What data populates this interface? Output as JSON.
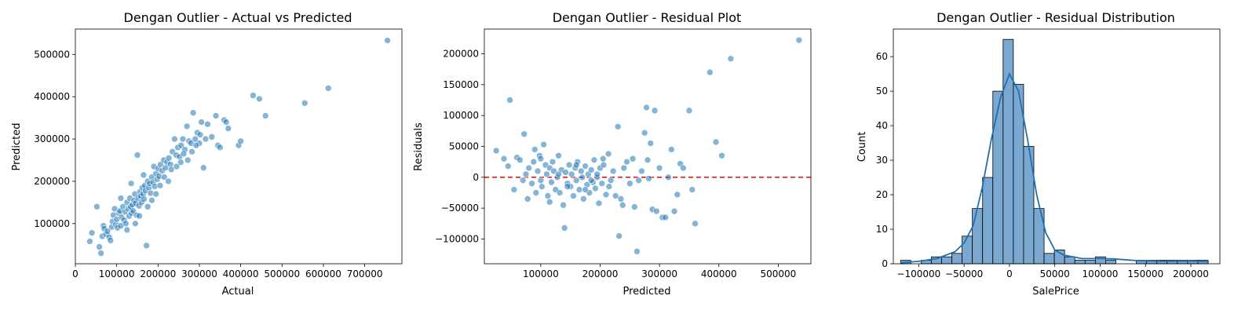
{
  "chart_data": [
    {
      "type": "scatter",
      "title": "Dengan Outlier - Actual vs Predicted",
      "xlabel": "Actual",
      "ylabel": "Predicted",
      "xlim": [
        0,
        790000
      ],
      "ylim": [
        5000,
        560000
      ],
      "xticks": [
        0,
        100000,
        200000,
        300000,
        400000,
        500000,
        600000,
        700000
      ],
      "yticks": [
        100000,
        200000,
        300000,
        400000,
        500000
      ],
      "color": "#1f77b4",
      "points": [
        [
          35000,
          58000
        ],
        [
          40000,
          78000
        ],
        [
          52000,
          140000
        ],
        [
          58000,
          45000
        ],
        [
          62000,
          30000
        ],
        [
          65000,
          70000
        ],
        [
          68000,
          95000
        ],
        [
          70000,
          88000
        ],
        [
          74000,
          75000
        ],
        [
          78000,
          82000
        ],
        [
          82000,
          68000
        ],
        [
          85000,
          60000
        ],
        [
          88000,
          92000
        ],
        [
          90000,
          105000
        ],
        [
          92000,
          120000
        ],
        [
          95000,
          135000
        ],
        [
          98000,
          98000
        ],
        [
          100000,
          110000
        ],
        [
          102000,
          90000
        ],
        [
          105000,
          125000
        ],
        [
          108000,
          130000
        ],
        [
          110000,
          95000
        ],
        [
          112000,
          115000
        ],
        [
          115000,
          140000
        ],
        [
          118000,
          108000
        ],
        [
          120000,
          128000
        ],
        [
          122000,
          100000
        ],
        [
          125000,
          150000
        ],
        [
          128000,
          135000
        ],
        [
          130000,
          118000
        ],
        [
          132000,
          160000
        ],
        [
          134000,
          140000
        ],
        [
          136000,
          125000
        ],
        [
          138000,
          145000
        ],
        [
          140000,
          130000
        ],
        [
          142000,
          155000
        ],
        [
          144000,
          170000
        ],
        [
          146000,
          148000
        ],
        [
          148000,
          120000
        ],
        [
          150000,
          262000
        ],
        [
          152000,
          160000
        ],
        [
          154000,
          142000
        ],
        [
          156000,
          175000
        ],
        [
          158000,
          165000
        ],
        [
          160000,
          150000
        ],
        [
          162000,
          185000
        ],
        [
          164000,
          170000
        ],
        [
          166000,
          158000
        ],
        [
          168000,
          190000
        ],
        [
          170000,
          178000
        ],
        [
          172000,
          48000
        ],
        [
          175000,
          200000
        ],
        [
          178000,
          185000
        ],
        [
          180000,
          195000
        ],
        [
          182000,
          172000
        ],
        [
          185000,
          210000
        ],
        [
          188000,
          198000
        ],
        [
          190000,
          235000
        ],
        [
          192000,
          188000
        ],
        [
          195000,
          218000
        ],
        [
          198000,
          205000
        ],
        [
          200000,
          230000
        ],
        [
          203000,
          212000
        ],
        [
          206000,
          240000
        ],
        [
          210000,
          225000
        ],
        [
          214000,
          250000
        ],
        [
          218000,
          232000
        ],
        [
          222000,
          245000
        ],
        [
          226000,
          255000
        ],
        [
          230000,
          240000
        ],
        [
          235000,
          270000
        ],
        [
          240000,
          300000
        ],
        [
          244000,
          262000
        ],
        [
          248000,
          280000
        ],
        [
          252000,
          258000
        ],
        [
          256000,
          285000
        ],
        [
          260000,
          300000
        ],
        [
          265000,
          275000
        ],
        [
          270000,
          330000
        ],
        [
          275000,
          295000
        ],
        [
          280000,
          290000
        ],
        [
          285000,
          362000
        ],
        [
          290000,
          300000
        ],
        [
          295000,
          315000
        ],
        [
          300000,
          290000
        ],
        [
          305000,
          340000
        ],
        [
          310000,
          232000
        ],
        [
          315000,
          300000
        ],
        [
          320000,
          335000
        ],
        [
          330000,
          305000
        ],
        [
          340000,
          355000
        ],
        [
          345000,
          285000
        ],
        [
          350000,
          280000
        ],
        [
          360000,
          345000
        ],
        [
          365000,
          340000
        ],
        [
          370000,
          325000
        ],
        [
          395000,
          285000
        ],
        [
          400000,
          295000
        ],
        [
          430000,
          403000
        ],
        [
          445000,
          395000
        ],
        [
          460000,
          355000
        ],
        [
          555000,
          385000
        ],
        [
          612000,
          420000
        ],
        [
          755000,
          533000
        ],
        [
          110000,
          160000
        ],
        [
          125000,
          85000
        ],
        [
          135000,
          195000
        ],
        [
          145000,
          100000
        ],
        [
          155000,
          118000
        ],
        [
          165000,
          215000
        ],
        [
          175000,
          140000
        ],
        [
          185000,
          155000
        ],
        [
          195000,
          170000
        ],
        [
          205000,
          190000
        ],
        [
          215000,
          210000
        ],
        [
          225000,
          200000
        ],
        [
          232000,
          228000
        ],
        [
          245000,
          235000
        ],
        [
          255000,
          245000
        ],
        [
          262000,
          265000
        ],
        [
          272000,
          250000
        ],
        [
          282000,
          270000
        ],
        [
          292000,
          285000
        ],
        [
          302000,
          310000
        ]
      ]
    },
    {
      "type": "scatter",
      "title": "Dengan Outlier - Residual Plot",
      "xlabel": "Predicted",
      "ylabel": "Residuals",
      "xlim": [
        5000,
        555000
      ],
      "ylim": [
        -140000,
        240000
      ],
      "xticks": [
        100000,
        200000,
        300000,
        400000,
        500000
      ],
      "yticks": [
        -100000,
        -50000,
        0,
        50000,
        100000,
        150000,
        200000
      ],
      "reference_line_y": 0,
      "reference_line_color": "#e41a1c",
      "color": "#1f77b4",
      "points": [
        [
          25000,
          43000
        ],
        [
          38000,
          30000
        ],
        [
          45000,
          18000
        ],
        [
          48000,
          125000
        ],
        [
          55000,
          -20000
        ],
        [
          60000,
          32000
        ],
        [
          65000,
          28000
        ],
        [
          70000,
          -5000
        ],
        [
          72000,
          70000
        ],
        [
          75000,
          5000
        ],
        [
          78000,
          -35000
        ],
        [
          80000,
          15000
        ],
        [
          85000,
          -10000
        ],
        [
          88000,
          25000
        ],
        [
          90000,
          45000
        ],
        [
          92000,
          -25000
        ],
        [
          95000,
          10000
        ],
        [
          98000,
          35000
        ],
        [
          100000,
          30000
        ],
        [
          102000,
          -15000
        ],
        [
          105000,
          53000
        ],
        [
          108000,
          20000
        ],
        [
          110000,
          5000
        ],
        [
          112000,
          -30000
        ],
        [
          115000,
          15000
        ],
        [
          118000,
          -8000
        ],
        [
          120000,
          25000
        ],
        [
          122000,
          10000
        ],
        [
          125000,
          -20000
        ],
        [
          128000,
          0
        ],
        [
          130000,
          35000
        ],
        [
          132000,
          -25000
        ],
        [
          135000,
          12000
        ],
        [
          138000,
          -45000
        ],
        [
          140000,
          -82000
        ],
        [
          142000,
          8000
        ],
        [
          145000,
          -10000
        ],
        [
          148000,
          20000
        ],
        [
          150000,
          -15000
        ],
        [
          152000,
          5000
        ],
        [
          155000,
          -30000
        ],
        [
          158000,
          15000
        ],
        [
          160000,
          -5000
        ],
        [
          162000,
          25000
        ],
        [
          165000,
          -20000
        ],
        [
          168000,
          10000
        ],
        [
          170000,
          0
        ],
        [
          172000,
          -35000
        ],
        [
          175000,
          18000
        ],
        [
          178000,
          -12000
        ],
        [
          180000,
          5000
        ],
        [
          182000,
          -25000
        ],
        [
          185000,
          12000
        ],
        [
          188000,
          -8000
        ],
        [
          190000,
          28000
        ],
        [
          192000,
          -18000
        ],
        [
          195000,
          0
        ],
        [
          198000,
          -42000
        ],
        [
          200000,
          15000
        ],
        [
          203000,
          -10000
        ],
        [
          206000,
          20000
        ],
        [
          210000,
          -28000
        ],
        [
          214000,
          38000
        ],
        [
          218000,
          -5000
        ],
        [
          222000,
          10000
        ],
        [
          226000,
          -30000
        ],
        [
          230000,
          82000
        ],
        [
          232000,
          -95000
        ],
        [
          235000,
          -35000
        ],
        [
          238000,
          -45000
        ],
        [
          240000,
          15000
        ],
        [
          245000,
          25000
        ],
        [
          250000,
          -10000
        ],
        [
          255000,
          30000
        ],
        [
          258000,
          -48000
        ],
        [
          262000,
          -120000
        ],
        [
          265000,
          -5000
        ],
        [
          270000,
          10000
        ],
        [
          275000,
          72000
        ],
        [
          278000,
          113000
        ],
        [
          280000,
          28000
        ],
        [
          282000,
          -2000
        ],
        [
          285000,
          55000
        ],
        [
          288000,
          -52000
        ],
        [
          292000,
          108000
        ],
        [
          295000,
          -55000
        ],
        [
          300000,
          15000
        ],
        [
          305000,
          -65000
        ],
        [
          310000,
          -65000
        ],
        [
          315000,
          0
        ],
        [
          320000,
          45000
        ],
        [
          325000,
          -55000
        ],
        [
          330000,
          -28000
        ],
        [
          335000,
          22000
        ],
        [
          340000,
          15000
        ],
        [
          350000,
          108000
        ],
        [
          355000,
          -20000
        ],
        [
          360000,
          -75000
        ],
        [
          385000,
          170000
        ],
        [
          395000,
          57000
        ],
        [
          405000,
          35000
        ],
        [
          420000,
          192000
        ],
        [
          535000,
          222000
        ],
        [
          100000,
          -5000
        ],
        [
          115000,
          -40000
        ],
        [
          130000,
          5000
        ],
        [
          145000,
          -15000
        ],
        [
          160000,
          20000
        ],
        [
          175000,
          -20000
        ],
        [
          185000,
          -5000
        ],
        [
          195000,
          5000
        ],
        [
          205000,
          30000
        ],
        [
          215000,
          -15000
        ]
      ]
    },
    {
      "type": "bar",
      "title": "Dengan Outlier - Residual Distribution",
      "xlabel": "SalePrice",
      "ylabel": "Count",
      "xlim": [
        -128000,
        232000
      ],
      "ylim": [
        0,
        68
      ],
      "xticks": [
        -100000,
        -50000,
        0,
        50000,
        100000,
        150000,
        200000
      ],
      "xtick_labels": [
        "−100000",
        "−50000",
        "0",
        "50000",
        "100000",
        "150000",
        "200000"
      ],
      "yticks": [
        0,
        10,
        20,
        30,
        40,
        50,
        60
      ],
      "bin_start": -120000,
      "bin_width": 11300,
      "values": [
        1,
        0,
        1,
        2,
        2,
        3,
        8,
        16,
        25,
        50,
        65,
        52,
        34,
        16,
        3,
        4,
        2,
        1,
        1,
        2,
        1,
        0,
        0,
        1,
        1,
        1,
        1,
        1,
        1,
        1
      ],
      "kde": [
        [
          -120000,
          0.3
        ],
        [
          -100000,
          0.7
        ],
        [
          -80000,
          1.5
        ],
        [
          -60000,
          3.5
        ],
        [
          -50000,
          6
        ],
        [
          -40000,
          11
        ],
        [
          -30000,
          22
        ],
        [
          -20000,
          36
        ],
        [
          -10000,
          48
        ],
        [
          0,
          55
        ],
        [
          10000,
          50
        ],
        [
          20000,
          36
        ],
        [
          30000,
          20
        ],
        [
          40000,
          9
        ],
        [
          50000,
          4
        ],
        [
          60000,
          2.5
        ],
        [
          80000,
          1.5
        ],
        [
          100000,
          1.5
        ],
        [
          115000,
          1.4
        ],
        [
          140000,
          0.9
        ],
        [
          170000,
          0.7
        ],
        [
          200000,
          0.8
        ],
        [
          220000,
          0.6
        ]
      ],
      "bar_color": "#7ba8d1",
      "kde_color": "#1f6fb4"
    }
  ]
}
